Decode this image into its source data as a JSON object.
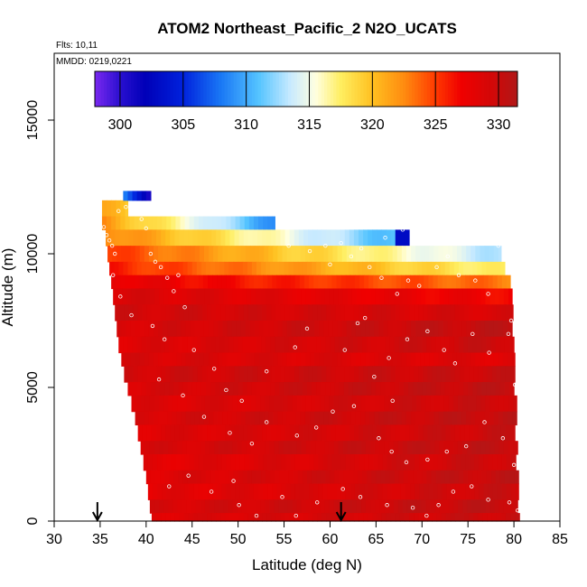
{
  "chart_data": {
    "type": "heatmap",
    "title": "ATOM2 Northeast_Pacific_2 N2O_UCATS",
    "flights_label": "Flts: 10,11",
    "mmdd_label": "MMDD: 0219,0221",
    "xlabel": "Latitude (deg N)",
    "ylabel": "Altitude (m)",
    "xlim": [
      30,
      85
    ],
    "ylim": [
      0,
      17500
    ],
    "x_ticks": [
      30,
      35,
      40,
      45,
      50,
      55,
      60,
      65,
      70,
      75,
      80,
      85
    ],
    "y_ticks": [
      0,
      5000,
      10000,
      15000
    ],
    "grid": false,
    "colorbar": {
      "range": [
        298,
        331.5
      ],
      "ticks": [
        300,
        305,
        310,
        315,
        320,
        325,
        330
      ],
      "stops": [
        {
          "v": 298,
          "color": "#7a28f0"
        },
        {
          "v": 300,
          "color": "#2a10d0"
        },
        {
          "v": 302,
          "color": "#0000b8"
        },
        {
          "v": 305,
          "color": "#0022dd"
        },
        {
          "v": 308,
          "color": "#1a78f5"
        },
        {
          "v": 311,
          "color": "#55c4ff"
        },
        {
          "v": 313.5,
          "color": "#c8eaff"
        },
        {
          "v": 315.5,
          "color": "#ffffe0"
        },
        {
          "v": 317.5,
          "color": "#ffee60"
        },
        {
          "v": 320,
          "color": "#ffc020"
        },
        {
          "v": 322.5,
          "color": "#ff8c10"
        },
        {
          "v": 325,
          "color": "#ff3a00"
        },
        {
          "v": 327,
          "color": "#f00000"
        },
        {
          "v": 329.5,
          "color": "#d20808"
        },
        {
          "v": 331.5,
          "color": "#b01818"
        }
      ]
    },
    "arrows_latitude": [
      34.7,
      61.2
    ],
    "layers": [
      {
        "alt": [
          11400,
          12000
        ],
        "lat": [
          35.2,
          38.0
        ],
        "v0": 321,
        "v1": 319,
        "top_lat": [
          37.5,
          40.5
        ],
        "top_v": [
          308,
          301
        ]
      },
      {
        "alt": [
          10900,
          11400
        ],
        "lat": [
          35.2,
          54.0
        ],
        "v0": 322,
        "v1": 309
      },
      {
        "alt": [
          10300,
          10900
        ],
        "lat": [
          35.6,
          68.7
        ],
        "v0": 323,
        "v1": 310,
        "dip_lat": [
          67.0,
          70.0
        ],
        "dip_v": 303
      },
      {
        "alt": [
          9700,
          10300
        ],
        "lat": [
          35.8,
          78.6
        ],
        "v0": 325,
        "v1": 313
      },
      {
        "alt": [
          9200,
          9700
        ],
        "lat": [
          36.0,
          79.0
        ],
        "v0": 326,
        "v1": 317
      },
      {
        "alt": [
          8700,
          9200
        ],
        "lat": [
          36.2,
          79.6
        ],
        "v0": 328,
        "v1": 323
      },
      {
        "alt": [
          8100,
          8700
        ],
        "lat": [
          36.4,
          79.8
        ],
        "v0": 329,
        "v1": 327
      },
      {
        "alt": [
          7500,
          8100
        ],
        "lat": [
          36.6,
          79.9
        ],
        "v0": 329.5,
        "v1": 329
      },
      {
        "alt": [
          6900,
          7500
        ],
        "lat": [
          36.8,
          80.0
        ],
        "v0": 329,
        "v1": 330.5
      },
      {
        "alt": [
          6300,
          6900
        ],
        "lat": [
          37.0,
          80.1
        ],
        "v0": 328.5,
        "v1": 330
      },
      {
        "alt": [
          5800,
          6300
        ],
        "lat": [
          37.3,
          80.1
        ],
        "v0": 329,
        "v1": 328.5
      },
      {
        "alt": [
          5200,
          5800
        ],
        "lat": [
          37.6,
          80.2
        ],
        "v0": 329.5,
        "v1": 330
      },
      {
        "alt": [
          4700,
          5200
        ],
        "lat": [
          38.0,
          80.2
        ],
        "v0": 329,
        "v1": 330.5
      },
      {
        "alt": [
          4100,
          4700
        ],
        "lat": [
          38.4,
          80.3
        ],
        "v0": 328.5,
        "v1": 330
      },
      {
        "alt": [
          3600,
          4100
        ],
        "lat": [
          38.8,
          80.3
        ],
        "v0": 329,
        "v1": 330.5
      },
      {
        "alt": [
          3000,
          3600
        ],
        "lat": [
          39.1,
          80.3
        ],
        "v0": 328.5,
        "v1": 330
      },
      {
        "alt": [
          2500,
          3000
        ],
        "lat": [
          39.4,
          80.4
        ],
        "v0": 329,
        "v1": 330.5
      },
      {
        "alt": [
          1900,
          2500
        ],
        "lat": [
          39.7,
          80.4
        ],
        "v0": 328,
        "v1": 330
      },
      {
        "alt": [
          1400,
          1900
        ],
        "lat": [
          40.0,
          80.5
        ],
        "v0": 328.5,
        "v1": 330.5
      },
      {
        "alt": [
          800,
          1400
        ],
        "lat": [
          40.2,
          80.5
        ],
        "v0": 328,
        "v1": 330
      },
      {
        "alt": [
          300,
          800
        ],
        "lat": [
          40.4,
          80.6
        ],
        "v0": 329,
        "v1": 330.5
      },
      {
        "alt": [
          0,
          300
        ],
        "lat": [
          40.6,
          80.6
        ],
        "v0": 328.5,
        "v1": 330
      }
    ],
    "points": [
      [
        35.4,
        11000
      ],
      [
        35.7,
        10700
      ],
      [
        36.0,
        10500
      ],
      [
        36.3,
        10300
      ],
      [
        36.6,
        10000
      ],
      [
        37.0,
        11600
      ],
      [
        37.8,
        11750
      ],
      [
        38.3,
        11800
      ],
      [
        39.0,
        11600
      ],
      [
        39.5,
        11300
      ],
      [
        40.0,
        10950
      ],
      [
        40.5,
        10000
      ],
      [
        41.0,
        9700
      ],
      [
        41.6,
        9500
      ],
      [
        42.3,
        9100
      ],
      [
        43.0,
        8600
      ],
      [
        43.5,
        9200
      ],
      [
        44.2,
        8000
      ],
      [
        36.4,
        9200
      ],
      [
        37.2,
        8400
      ],
      [
        38.4,
        7700
      ],
      [
        40.7,
        7300
      ],
      [
        42.0,
        6800
      ],
      [
        45.2,
        6400
      ],
      [
        47.4,
        5700
      ],
      [
        48.7,
        4900
      ],
      [
        50.4,
        4500
      ],
      [
        53.1,
        5600
      ],
      [
        56.2,
        6500
      ],
      [
        57.5,
        7200
      ],
      [
        61.6,
        6400
      ],
      [
        63.0,
        7400
      ],
      [
        64.8,
        5400
      ],
      [
        66.4,
        6100
      ],
      [
        68.4,
        6800
      ],
      [
        70.6,
        7100
      ],
      [
        72.4,
        6400
      ],
      [
        73.6,
        5900
      ],
      [
        75.5,
        7000
      ],
      [
        77.3,
        6300
      ],
      [
        79.7,
        7500
      ],
      [
        79.4,
        7000
      ],
      [
        80.1,
        5100
      ],
      [
        41.4,
        5300
      ],
      [
        44.0,
        4700
      ],
      [
        46.3,
        3900
      ],
      [
        49.1,
        3300
      ],
      [
        51.5,
        2900
      ],
      [
        53.1,
        3700
      ],
      [
        56.4,
        3200
      ],
      [
        58.5,
        3500
      ],
      [
        60.3,
        4100
      ],
      [
        62.6,
        4300
      ],
      [
        65.3,
        3100
      ],
      [
        66.7,
        2600
      ],
      [
        68.3,
        2200
      ],
      [
        70.6,
        2300
      ],
      [
        72.7,
        2600
      ],
      [
        74.8,
        2800
      ],
      [
        76.8,
        3700
      ],
      [
        78.8,
        3100
      ],
      [
        80.0,
        2100
      ],
      [
        42.5,
        1300
      ],
      [
        44.6,
        1700
      ],
      [
        47.1,
        1100
      ],
      [
        49.5,
        1500
      ],
      [
        50.1,
        600
      ],
      [
        52.0,
        200
      ],
      [
        54.8,
        900
      ],
      [
        56.3,
        200
      ],
      [
        58.6,
        700
      ],
      [
        61.4,
        1200
      ],
      [
        63.3,
        900
      ],
      [
        66.2,
        600
      ],
      [
        69.0,
        500
      ],
      [
        70.5,
        200
      ],
      [
        71.8,
        600
      ],
      [
        73.4,
        1100
      ],
      [
        75.4,
        1300
      ],
      [
        77.2,
        800
      ],
      [
        79.5,
        700
      ],
      [
        80.4,
        400
      ],
      [
        59.5,
        10300
      ],
      [
        61.2,
        10400
      ],
      [
        62.3,
        9900
      ],
      [
        63.4,
        10200
      ],
      [
        64.3,
        9500
      ],
      [
        65.6,
        9100
      ],
      [
        67.3,
        8500
      ],
      [
        68.5,
        9000
      ],
      [
        69.7,
        8800
      ],
      [
        71.6,
        9500
      ],
      [
        72.8,
        9900
      ],
      [
        74.0,
        9200
      ],
      [
        75.8,
        9000
      ],
      [
        77.2,
        8500
      ],
      [
        78.3,
        10300
      ],
      [
        79.0,
        10000
      ],
      [
        55.5,
        10300
      ],
      [
        57.8,
        10100
      ],
      [
        60.0,
        9600
      ],
      [
        66.0,
        10600
      ],
      [
        67.9,
        10900
      ],
      [
        63.8,
        7600
      ],
      [
        66.8,
        4500
      ]
    ]
  }
}
